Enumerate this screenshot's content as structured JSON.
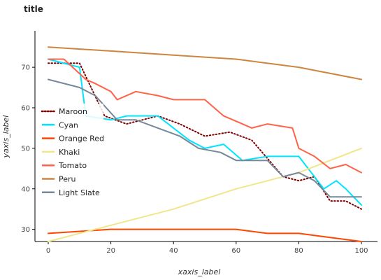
{
  "chart_data": {
    "type": "line",
    "title": "title",
    "xlabel": "xaxis_label",
    "ylabel": "yaxis_label",
    "xlim": [
      0,
      100
    ],
    "ylim": [
      27,
      79
    ],
    "x_ticks": [
      "0",
      "20",
      "40",
      "60",
      "80",
      "100"
    ],
    "y_ticks": [
      "30",
      "40",
      "50",
      "60",
      "70"
    ],
    "grid": false,
    "legend_position": "left-inside",
    "series": [
      {
        "name": "Maroon",
        "color": "#800000",
        "dash": "dotted",
        "x": [
          0,
          10,
          18,
          25,
          35,
          42,
          50,
          58,
          65,
          75,
          80,
          85,
          90,
          95,
          100
        ],
        "values": [
          71,
          71,
          58,
          56,
          58,
          56,
          53,
          54,
          52,
          43,
          42,
          43,
          37,
          37,
          35
        ]
      },
      {
        "name": "Cyan",
        "color": "#00e5ff",
        "x": [
          0,
          10,
          12,
          20,
          25,
          35,
          45,
          50,
          56,
          62,
          70,
          80,
          88,
          92,
          95,
          100
        ],
        "values": [
          72,
          70,
          58,
          57,
          58,
          58,
          52,
          50,
          51,
          47,
          48,
          48,
          40,
          42,
          40,
          36
        ]
      },
      {
        "name": "Orange Red",
        "color": "#ff4500",
        "x": [
          0,
          20,
          30,
          40,
          50,
          60,
          70,
          80,
          90,
          100
        ],
        "values": [
          29,
          30,
          30,
          30,
          30,
          30,
          29,
          29,
          28,
          27
        ]
      },
      {
        "name": "Khaki",
        "color": "#f0e68c",
        "x": [
          0,
          20,
          40,
          60,
          80,
          100
        ],
        "values": [
          27,
          31,
          35,
          40,
          44,
          50
        ]
      },
      {
        "name": "Tomato",
        "color": "#ff6347",
        "x": [
          0,
          5,
          12,
          15,
          20,
          22,
          28,
          35,
          40,
          50,
          56,
          62,
          65,
          70,
          78,
          80,
          85,
          90,
          95,
          100
        ],
        "values": [
          72,
          72,
          67,
          66,
          64,
          62,
          64,
          63,
          62,
          62,
          58,
          56,
          55,
          56,
          55,
          50,
          48,
          45,
          46,
          44
        ]
      },
      {
        "name": "Peru",
        "color": "#cd853f",
        "x": [
          0,
          20,
          40,
          60,
          80,
          100
        ],
        "values": [
          75,
          74,
          73,
          72,
          70,
          67
        ]
      },
      {
        "name": "Light Slate",
        "color": "#778899",
        "x": [
          0,
          10,
          15,
          22,
          28,
          35,
          42,
          48,
          55,
          60,
          70,
          75,
          80,
          85,
          90,
          95,
          100
        ],
        "values": [
          67,
          65,
          63,
          57,
          57,
          55,
          53,
          50,
          49,
          47,
          47,
          43,
          44,
          42,
          38,
          38,
          38
        ]
      }
    ]
  }
}
